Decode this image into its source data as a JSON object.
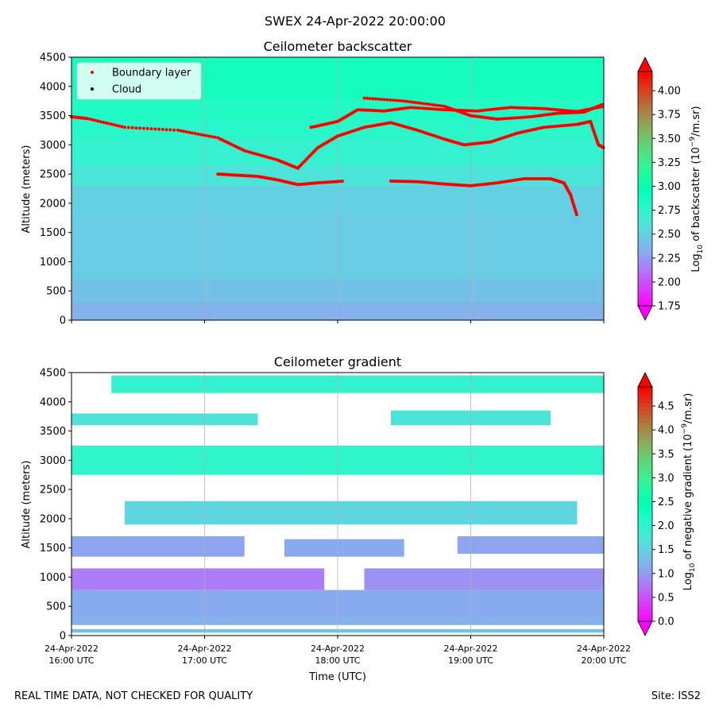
{
  "figure_title": "SWEX 24-Apr-2022 20:00:00",
  "footer_left": "REAL TIME DATA, NOT CHECKED FOR QUALITY",
  "footer_right": "Site: ISS2",
  "xlabel": "Time (UTC)",
  "x_ticks": [
    {
      "date": "24-Apr-2022",
      "time": "16:00 UTC"
    },
    {
      "date": "24-Apr-2022",
      "time": "17:00 UTC"
    },
    {
      "date": "24-Apr-2022",
      "time": "18:00 UTC"
    },
    {
      "date": "24-Apr-2022",
      "time": "19:00 UTC"
    },
    {
      "date": "24-Apr-2022",
      "time": "20:00 UTC"
    }
  ],
  "chart_data": [
    {
      "type": "heatmap",
      "title": "Ceilometer backscatter",
      "xlabel": "",
      "ylabel": "Altitude (meters)",
      "xlim": [
        "24-Apr-2022 16:00 UTC",
        "24-Apr-2022 20:00 UTC"
      ],
      "ylim": [
        0,
        4500
      ],
      "y_ticks": [
        0,
        500,
        1000,
        1500,
        2000,
        2500,
        3000,
        3500,
        4000,
        4500
      ],
      "colorbar": {
        "label": "Log10 of backscatter (10^-9/m.sr)",
        "min": 1.75,
        "max": 4.2,
        "ticks": [
          "1.75",
          "2.00",
          "2.25",
          "2.50",
          "2.75",
          "3.00",
          "3.25",
          "3.50",
          "3.75",
          "4.00"
        ],
        "colormap": "rainbow"
      },
      "bands": [
        {
          "from": 0,
          "to": 300,
          "level": 2.35
        },
        {
          "from": 300,
          "to": 700,
          "level": 2.42
        },
        {
          "from": 700,
          "to": 1800,
          "level": 2.47
        },
        {
          "from": 1800,
          "to": 2300,
          "level": 2.5
        },
        {
          "from": 2300,
          "to": 2650,
          "level": 2.62
        },
        {
          "from": 2650,
          "to": 3100,
          "level": 2.72
        },
        {
          "from": 3100,
          "to": 3400,
          "level": 2.78
        },
        {
          "from": 3400,
          "to": 3800,
          "level": 2.82
        },
        {
          "from": 3800,
          "to": 4500,
          "level": 2.88
        }
      ],
      "legend": {
        "placement": "top-left",
        "entries": [
          {
            "name": "Boundary layer",
            "color": "#ff0000"
          },
          {
            "name": "Cloud",
            "color": "#000000"
          }
        ]
      },
      "boundary_layer": [
        {
          "t": [
            0.0,
            0.12,
            0.4,
            0.8,
            1.1,
            1.3,
            1.55,
            1.7,
            1.85,
            2.0,
            2.2,
            2.4,
            2.6,
            2.8,
            2.95,
            3.15,
            3.35,
            3.55,
            3.8,
            3.9,
            3.96,
            4.0
          ],
          "alt": [
            3480,
            3450,
            3300,
            3250,
            3120,
            2900,
            2740,
            2600,
            2950,
            3150,
            3300,
            3380,
            3250,
            3100,
            3000,
            3050,
            3200,
            3300,
            3350,
            3400,
            3000,
            2950
          ]
        },
        {
          "t": [
            1.8,
            2.0,
            2.15,
            2.35,
            2.55,
            2.8,
            3.05,
            3.3,
            3.55,
            3.8,
            4.0
          ],
          "alt": [
            3300,
            3400,
            3600,
            3580,
            3640,
            3600,
            3580,
            3640,
            3620,
            3570,
            3660
          ]
        },
        {
          "t": [
            2.2,
            2.5,
            2.8,
            3.0,
            3.2,
            3.45,
            3.65,
            3.85,
            4.0
          ],
          "alt": [
            3800,
            3750,
            3660,
            3500,
            3440,
            3480,
            3540,
            3560,
            3700
          ]
        },
        {
          "t": [
            1.1,
            1.25,
            1.4,
            1.55,
            1.7,
            1.85,
            2.05
          ],
          "alt": [
            2500,
            2480,
            2460,
            2400,
            2320,
            2350,
            2380
          ]
        },
        {
          "t": [
            2.4,
            2.6,
            2.8,
            3.0,
            3.2,
            3.4,
            3.6,
            3.7,
            3.75,
            3.8
          ],
          "alt": [
            2380,
            2370,
            2330,
            2300,
            2350,
            2420,
            2420,
            2350,
            2150,
            1780
          ]
        }
      ],
      "cloud": []
    },
    {
      "type": "heatmap",
      "title": "Ceilometer gradient",
      "xlabel": "Time (UTC)",
      "ylabel": "Altitude (meters)",
      "xlim": [
        "24-Apr-2022 16:00 UTC",
        "24-Apr-2022 20:00 UTC"
      ],
      "ylim": [
        0,
        4500
      ],
      "y_ticks": [
        0,
        500,
        1000,
        1500,
        2000,
        2500,
        3000,
        3500,
        4000,
        4500
      ],
      "colorbar": {
        "label": "Log10 of negative gradient (10^-9/m.sr)",
        "min": 0.0,
        "max": 4.9,
        "ticks": [
          "0.0",
          "0.5",
          "1.0",
          "1.5",
          "2.0",
          "2.5",
          "3.0",
          "3.5",
          "4.0",
          "4.5"
        ],
        "colormap": "rainbow"
      },
      "bands": [
        {
          "from": 50,
          "to": 110,
          "level": 1.35,
          "t0": 0.0,
          "t1": 4.0
        },
        {
          "from": 180,
          "to": 320,
          "level": 1.2,
          "t0": 0.0,
          "t1": 4.0
        },
        {
          "from": 320,
          "to": 780,
          "level": 1.15,
          "t0": 0.0,
          "t1": 4.0
        },
        {
          "from": 780,
          "to": 1150,
          "level": 0.8,
          "t0": 0.0,
          "t1": 1.9
        },
        {
          "from": 780,
          "to": 1150,
          "level": 0.95,
          "t0": 2.2,
          "t1": 4.0
        },
        {
          "from": 1350,
          "to": 1700,
          "level": 1.1,
          "t0": 0.0,
          "t1": 1.3
        },
        {
          "from": 1350,
          "to": 1650,
          "level": 1.15,
          "t0": 1.6,
          "t1": 2.5
        },
        {
          "from": 1400,
          "to": 1700,
          "level": 1.1,
          "t0": 2.9,
          "t1": 4.0
        },
        {
          "from": 1900,
          "to": 2300,
          "level": 1.55,
          "t0": 0.4,
          "t1": 3.8
        },
        {
          "from": 2750,
          "to": 3250,
          "level": 2.0,
          "t0": 0.0,
          "t1": 4.0
        },
        {
          "from": 3600,
          "to": 3800,
          "level": 1.7,
          "t0": 0.0,
          "t1": 1.4
        },
        {
          "from": 3600,
          "to": 3850,
          "level": 1.75,
          "t0": 2.4,
          "t1": 3.6
        },
        {
          "from": 4150,
          "to": 4450,
          "level": 1.95,
          "t0": 0.3,
          "t1": 4.0
        }
      ]
    }
  ]
}
